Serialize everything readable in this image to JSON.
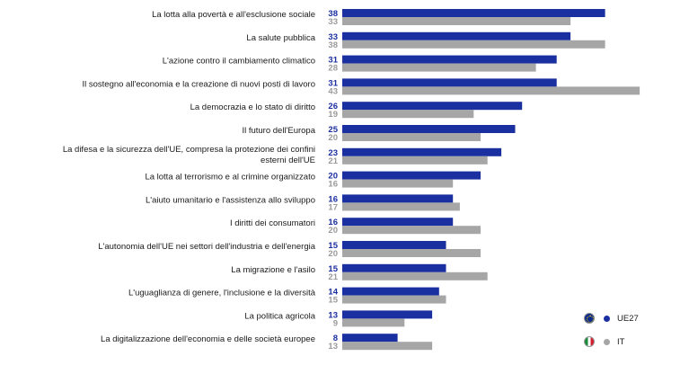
{
  "chart_data": {
    "type": "bar",
    "orientation": "horizontal",
    "categories": [
      "La lotta alla povertà e all'esclusione sociale",
      "La salute pubblica",
      "L'azione contro il cambiamento climatico",
      "Il sostegno all'economia e la creazione di nuovi posti di lavoro",
      "La democrazia e lo stato di diritto",
      "Il futuro dell'Europa",
      "La difesa e la sicurezza dell'UE, compresa la protezione dei confini esterni dell'UE",
      "La lotta al terrorismo e al crimine organizzato",
      "L'aiuto umanitario e l'assistenza allo sviluppo",
      "I diritti dei consumatori",
      "L'autonomia dell'UE nei settori dell'industria e dell'energia",
      "La migrazione e l'asilo",
      "L'uguaglianza di genere, l'inclusione e la diversità",
      "La politica agricola",
      "La digitalizzazione dell'economia e delle società europee"
    ],
    "category_lines": [
      [
        "La lotta alla povertà e all'esclusione sociale"
      ],
      [
        "La salute pubblica"
      ],
      [
        "L'azione contro il cambiamento climatico"
      ],
      [
        "Il sostegno all'economia e la creazione di nuovi posti di lavoro"
      ],
      [
        "La democrazia e lo stato di diritto"
      ],
      [
        "Il futuro dell'Europa"
      ],
      [
        "La difesa e la sicurezza dell'UE, compresa la protezione dei confini",
        "esterni dell'UE"
      ],
      [
        "La lotta al terrorismo e al crimine organizzato"
      ],
      [
        "L'aiuto umanitario e l'assistenza allo sviluppo"
      ],
      [
        "I diritti dei consumatori"
      ],
      [
        "L'autonomia dell'UE nei settori dell'industria e dell'energia"
      ],
      [
        "La migrazione e l'asilo"
      ],
      [
        "L'uguaglianza di genere, l'inclusione e la diversità"
      ],
      [
        "La politica agricola"
      ],
      [
        "La digitalizzazione dell'economia e delle società europee"
      ]
    ],
    "series": [
      {
        "name": "UE27",
        "color": "#1a2fa0",
        "values": [
          38,
          33,
          31,
          31,
          26,
          25,
          23,
          20,
          16,
          16,
          15,
          15,
          14,
          13,
          8
        ]
      },
      {
        "name": "IT",
        "color": "#a6a6a6",
        "values": [
          33,
          38,
          28,
          43,
          19,
          20,
          21,
          16,
          17,
          20,
          20,
          21,
          15,
          9,
          13
        ]
      }
    ],
    "xlim": [
      0,
      50
    ],
    "grid": false,
    "legend_position": "bottom-right"
  },
  "legend": {
    "items": [
      {
        "label": "UE27",
        "flag_icon": "eu-flag-icon",
        "color": "#1a2fa0"
      },
      {
        "label": "IT",
        "flag_icon": "italy-flag-icon",
        "color": "#a6a6a6"
      }
    ]
  }
}
